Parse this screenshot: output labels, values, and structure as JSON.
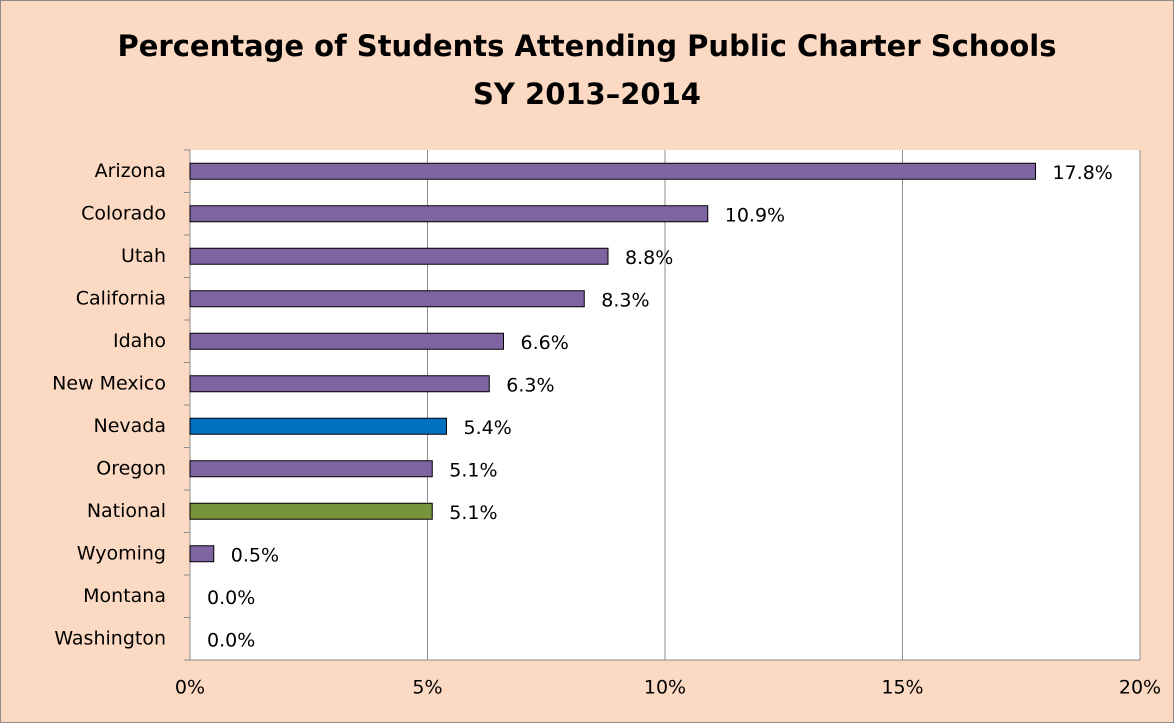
{
  "chart_data": {
    "type": "bar",
    "orientation": "horizontal",
    "title": "Percentage of Students Attending Public Charter Schools",
    "subtitle": "SY 2013–2014",
    "categories": [
      "Arizona",
      "Colorado",
      "Utah",
      "California",
      "Idaho",
      "New Mexico",
      "Nevada",
      "Oregon",
      "National",
      "Wyoming",
      "Montana",
      "Washington"
    ],
    "values": [
      17.8,
      10.9,
      8.8,
      8.3,
      6.6,
      6.3,
      5.4,
      5.1,
      5.1,
      0.5,
      0.0,
      0.0
    ],
    "value_labels": [
      "17.8%",
      "10.9%",
      "8.8%",
      "8.3%",
      "6.6%",
      "6.3%",
      "5.4%",
      "5.1%",
      "5.1%",
      "0.5%",
      "0.0%",
      "0.0%"
    ],
    "colors": [
      "#8064a2",
      "#8064a2",
      "#8064a2",
      "#8064a2",
      "#8064a2",
      "#8064a2",
      "#0070c0",
      "#8064a2",
      "#77933c",
      "#8064a2",
      "#8064a2",
      "#8064a2"
    ],
    "xlim": [
      0,
      20
    ],
    "xticks": [
      {
        "value": 0,
        "label": "0%"
      },
      {
        "value": 5,
        "label": "5%"
      },
      {
        "value": 10,
        "label": "10%"
      },
      {
        "value": 15,
        "label": "15%"
      },
      {
        "value": 20,
        "label": "20%"
      }
    ],
    "grid": true
  }
}
